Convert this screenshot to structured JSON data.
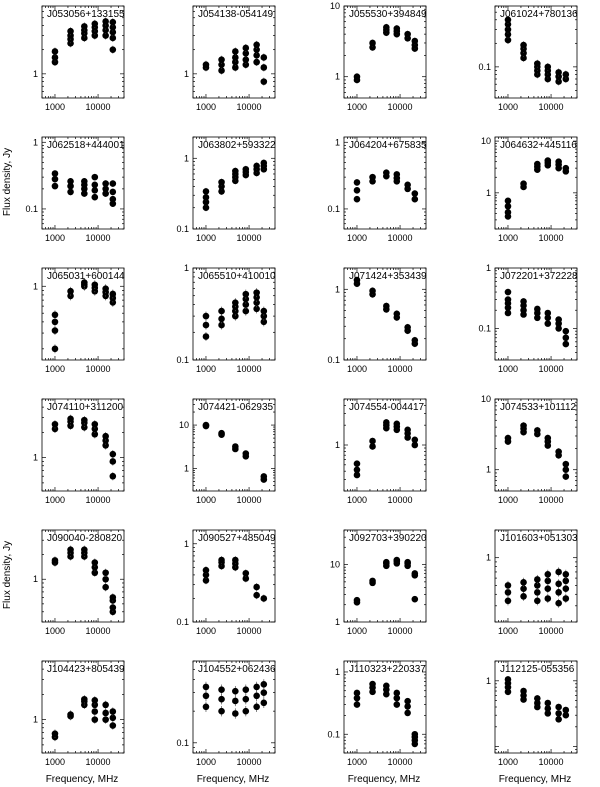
{
  "axis_titles": {
    "ylabel": "Flux density, Jy",
    "xlabel": "Frequency, MHz"
  },
  "chart_data": [
    {
      "type": "scatter",
      "title": "J053056+133155",
      "xticks": [
        1000,
        10000
      ],
      "yticks": [
        1
      ],
      "ylim": [
        0.5,
        7
      ],
      "x": [
        1000,
        1000,
        1000,
        2300,
        2300,
        2300,
        2300,
        4800,
        4800,
        4800,
        4800,
        8400,
        8400,
        8400,
        8400,
        15000,
        15000,
        15000,
        15000,
        22000,
        22000,
        22000,
        22000,
        22000
      ],
      "y": [
        1.4,
        1.6,
        1.9,
        2.4,
        2.7,
        3.0,
        3.4,
        2.8,
        3.2,
        3.5,
        3.9,
        3.0,
        3.4,
        3.8,
        4.2,
        3.0,
        3.5,
        4.0,
        4.5,
        2.0,
        2.8,
        3.3,
        3.8,
        4.4
      ]
    },
    {
      "type": "scatter",
      "title": "J054138-054149",
      "xticks": [
        1000,
        10000
      ],
      "yticks": [
        1
      ],
      "ylim": [
        0.5,
        7
      ],
      "x": [
        1000,
        1000,
        2300,
        2300,
        2300,
        4800,
        4800,
        4800,
        4800,
        8400,
        8400,
        8400,
        8400,
        15000,
        15000,
        15000,
        15000,
        22000,
        22000,
        22000
      ],
      "y": [
        1.2,
        1.3,
        1.1,
        1.3,
        1.5,
        1.2,
        1.4,
        1.6,
        1.9,
        1.3,
        1.5,
        1.8,
        2.1,
        1.4,
        1.7,
        2.0,
        2.3,
        0.8,
        1.2,
        1.6
      ]
    },
    {
      "type": "scatter",
      "title": "J055530+394849",
      "xticks": [
        1000,
        10000
      ],
      "yticks": [
        1,
        10
      ],
      "ylim": [
        0.5,
        10
      ],
      "x": [
        1000,
        1000,
        2300,
        2300,
        4800,
        4800,
        4800,
        8400,
        8400,
        8400,
        15000,
        15000,
        22000,
        22000,
        22000
      ],
      "y": [
        0.9,
        1.0,
        2.6,
        3.0,
        4.2,
        4.6,
        5.0,
        4.0,
        4.4,
        4.8,
        3.5,
        4.0,
        2.5,
        2.8,
        3.2
      ]
    },
    {
      "type": "scatter",
      "title": "J061024+780136",
      "xticks": [
        1000,
        10000
      ],
      "yticks": [
        0.1
      ],
      "ylim": [
        0.04,
        0.6
      ],
      "x": [
        1000,
        1000,
        1000,
        1000,
        1000,
        2300,
        2300,
        2300,
        2300,
        4800,
        4800,
        4800,
        4800,
        8400,
        8400,
        8400,
        8400,
        15000,
        15000,
        15000,
        22000,
        22000
      ],
      "y": [
        0.22,
        0.26,
        0.3,
        0.35,
        0.4,
        0.13,
        0.15,
        0.17,
        0.19,
        0.08,
        0.09,
        0.1,
        0.11,
        0.07,
        0.08,
        0.09,
        0.1,
        0.065,
        0.075,
        0.085,
        0.07,
        0.08
      ]
    },
    {
      "type": "scatter",
      "title": "J062518+444001",
      "xticks": [
        1000,
        10000
      ],
      "yticks": [
        0.1,
        1
      ],
      "ylim": [
        0.05,
        1.2
      ],
      "x": [
        1000,
        1000,
        1000,
        2300,
        2300,
        2300,
        4800,
        4800,
        4800,
        4800,
        8400,
        8400,
        8400,
        8400,
        15000,
        15000,
        15000,
        22000,
        22000,
        22000,
        22000
      ],
      "y": [
        0.22,
        0.28,
        0.34,
        0.18,
        0.22,
        0.26,
        0.17,
        0.2,
        0.23,
        0.26,
        0.15,
        0.19,
        0.23,
        0.3,
        0.17,
        0.2,
        0.24,
        0.12,
        0.14,
        0.18,
        0.24
      ]
    },
    {
      "type": "scatter",
      "title": "J063802+593322",
      "xticks": [
        1000,
        10000
      ],
      "yticks": [
        0.1,
        1
      ],
      "ylim": [
        0.1,
        2
      ],
      "x": [
        1000,
        1000,
        1000,
        1000,
        2300,
        2300,
        2300,
        4800,
        4800,
        4800,
        4800,
        8400,
        8400,
        8400,
        15000,
        15000,
        15000,
        22000,
        22000,
        22000
      ],
      "y": [
        0.2,
        0.24,
        0.28,
        0.34,
        0.34,
        0.4,
        0.46,
        0.48,
        0.54,
        0.6,
        0.66,
        0.58,
        0.64,
        0.7,
        0.62,
        0.7,
        0.78,
        0.7,
        0.78,
        0.86
      ]
    },
    {
      "type": "scatter",
      "title": "J064204+675835",
      "xticks": [
        1000,
        10000
      ],
      "yticks": [
        0.1,
        1
      ],
      "ylim": [
        0.05,
        1.2
      ],
      "x": [
        1000,
        1000,
        1000,
        2300,
        2300,
        4800,
        4800,
        8400,
        8400,
        8400,
        15000,
        15000,
        22000,
        22000
      ],
      "y": [
        0.14,
        0.19,
        0.25,
        0.26,
        0.3,
        0.31,
        0.35,
        0.26,
        0.29,
        0.33,
        0.2,
        0.23,
        0.14,
        0.17
      ]
    },
    {
      "type": "scatter",
      "title": "J064632+445116",
      "xticks": [
        1000,
        10000
      ],
      "yticks": [
        1,
        10
      ],
      "ylim": [
        0.2,
        12
      ],
      "x": [
        1000,
        1000,
        1000,
        1000,
        2300,
        2300,
        4800,
        4800,
        4800,
        8400,
        8400,
        8400,
        15000,
        15000,
        15000,
        22000,
        22000
      ],
      "y": [
        0.35,
        0.42,
        0.55,
        0.7,
        1.3,
        1.5,
        2.8,
        3.2,
        3.6,
        3.4,
        3.8,
        4.2,
        3.0,
        3.5,
        4.0,
        2.6,
        3.0
      ]
    },
    {
      "type": "scatter",
      "title": "J065031+600144",
      "xticks": [
        1000,
        10000
      ],
      "yticks": [
        1
      ],
      "ylim": [
        0.15,
        1.6
      ],
      "x": [
        1000,
        1000,
        1000,
        1000,
        2300,
        2300,
        4800,
        4800,
        4800,
        8400,
        8400,
        8400,
        15000,
        15000,
        15000,
        22000,
        22000,
        22000
      ],
      "y": [
        0.2,
        0.32,
        0.4,
        0.48,
        0.78,
        0.88,
        1.0,
        1.05,
        1.1,
        0.88,
        0.96,
        1.04,
        0.78,
        0.86,
        0.94,
        0.66,
        0.74,
        0.82
      ]
    },
    {
      "type": "scatter",
      "title": "J065510+410010",
      "xticks": [
        1000,
        10000
      ],
      "yticks": [
        0.1,
        1
      ],
      "ylim": [
        0.1,
        1
      ],
      "x": [
        1000,
        1000,
        1000,
        2300,
        2300,
        2300,
        4800,
        4800,
        4800,
        4800,
        8400,
        8400,
        8400,
        8400,
        15000,
        15000,
        15000,
        15000,
        22000,
        22000,
        22000
      ],
      "y": [
        0.18,
        0.24,
        0.3,
        0.24,
        0.28,
        0.34,
        0.3,
        0.34,
        0.38,
        0.42,
        0.34,
        0.4,
        0.46,
        0.52,
        0.36,
        0.42,
        0.48,
        0.54,
        0.26,
        0.3,
        0.34
      ]
    },
    {
      "type": "scatter",
      "title": "J071424+353439",
      "xticks": [
        1000,
        10000
      ],
      "yticks": [
        0.1,
        1
      ],
      "ylim": [
        0.1,
        2
      ],
      "x": [
        1000,
        1000,
        2300,
        2300,
        4800,
        4800,
        8400,
        8400,
        15000,
        15000,
        22000,
        22000
      ],
      "y": [
        1.2,
        1.35,
        0.85,
        0.95,
        0.52,
        0.58,
        0.4,
        0.45,
        0.26,
        0.29,
        0.17,
        0.19
      ]
    },
    {
      "type": "scatter",
      "title": "J072201+372228",
      "xticks": [
        1000,
        10000
      ],
      "yticks": [
        0.1,
        1
      ],
      "ylim": [
        0.03,
        1
      ],
      "x": [
        1000,
        1000,
        1000,
        1000,
        1000,
        2300,
        2300,
        2300,
        2300,
        4800,
        4800,
        4800,
        8400,
        8400,
        8400,
        15000,
        15000,
        15000,
        22000,
        22000,
        22000
      ],
      "y": [
        0.18,
        0.22,
        0.26,
        0.3,
        0.4,
        0.17,
        0.2,
        0.24,
        0.28,
        0.15,
        0.18,
        0.21,
        0.12,
        0.15,
        0.18,
        0.1,
        0.12,
        0.14,
        0.055,
        0.07,
        0.09
      ]
    },
    {
      "type": "scatter",
      "title": "J074110+311200",
      "xticks": [
        1000,
        10000
      ],
      "yticks": [
        1
      ],
      "ylim": [
        0.4,
        5
      ],
      "x": [
        1000,
        1000,
        2300,
        2300,
        2300,
        4800,
        4800,
        4800,
        8400,
        8400,
        8400,
        15000,
        15000,
        15000,
        22000,
        22000,
        22000
      ],
      "y": [
        2.2,
        2.5,
        2.4,
        2.7,
        2.9,
        2.3,
        2.6,
        2.8,
        1.9,
        2.2,
        2.5,
        1.4,
        1.6,
        1.8,
        0.6,
        0.9,
        1.1
      ]
    },
    {
      "type": "scatter",
      "title": "J074421-062935",
      "xticks": [
        1000,
        10000
      ],
      "yticks": [
        1,
        10
      ],
      "ylim": [
        0.3,
        40
      ],
      "x": [
        1000,
        1000,
        2300,
        2300,
        4800,
        4800,
        8400,
        8400,
        22000,
        22000
      ],
      "y": [
        9.5,
        10.0,
        6.0,
        6.5,
        2.8,
        3.2,
        1.9,
        2.2,
        0.55,
        0.65
      ]
    },
    {
      "type": "scatter",
      "title": "J074554-004417",
      "xticks": [
        1000,
        10000
      ],
      "yticks": [
        1
      ],
      "ylim": [
        0.2,
        5
      ],
      "x": [
        1000,
        1000,
        1000,
        2300,
        2300,
        4800,
        4800,
        4800,
        8400,
        8400,
        8400,
        15000,
        15000,
        15000,
        22000,
        22000
      ],
      "y": [
        0.35,
        0.42,
        0.52,
        0.95,
        1.15,
        1.8,
        2.0,
        2.2,
        1.7,
        1.9,
        2.1,
        1.3,
        1.5,
        1.7,
        1.0,
        1.2
      ]
    },
    {
      "type": "scatter",
      "title": "J074533+101112",
      "xticks": [
        1000,
        10000
      ],
      "yticks": [
        1,
        10
      ],
      "ylim": [
        0.5,
        10
      ],
      "x": [
        1000,
        1000,
        2300,
        2300,
        2300,
        4800,
        4800,
        8400,
        8400,
        8400,
        15000,
        15000,
        22000,
        22000,
        22000
      ],
      "y": [
        2.5,
        2.8,
        3.4,
        3.8,
        4.2,
        3.2,
        3.6,
        2.2,
        2.5,
        2.8,
        1.6,
        1.8,
        0.8,
        1.0,
        1.2
      ]
    },
    {
      "type": "scatter",
      "title": "J090040-280820",
      "xticks": [
        1000,
        10000
      ],
      "yticks": [
        1
      ],
      "ylim": [
        0.3,
        4
      ],
      "x": [
        1000,
        1000,
        2300,
        2300,
        2300,
        4800,
        4800,
        4800,
        8400,
        8400,
        8400,
        15000,
        15000,
        15000,
        22000,
        22000,
        22000,
        22000
      ],
      "y": [
        1.6,
        1.7,
        1.9,
        2.1,
        2.3,
        1.9,
        2.1,
        2.3,
        1.2,
        1.4,
        1.6,
        0.8,
        1.0,
        1.2,
        0.4,
        0.45,
        0.55,
        0.6
      ]
    },
    {
      "type": "scatter",
      "title": "J090527+485049",
      "xticks": [
        1000,
        10000
      ],
      "yticks": [
        0.1,
        1
      ],
      "ylim": [
        0.1,
        1.5
      ],
      "x": [
        1000,
        1000,
        1000,
        2300,
        2300,
        2300,
        4800,
        4800,
        4800,
        8400,
        8400,
        15000,
        15000,
        22000
      ],
      "y": [
        0.34,
        0.4,
        0.46,
        0.52,
        0.58,
        0.62,
        0.5,
        0.56,
        0.62,
        0.36,
        0.42,
        0.22,
        0.28,
        0.2
      ]
    },
    {
      "type": "scatter",
      "title": "J092703+390220",
      "xticks": [
        1000,
        10000
      ],
      "yticks": [
        1,
        10
      ],
      "ylim": [
        1,
        40
      ],
      "x": [
        1000,
        1000,
        2300,
        2300,
        4800,
        4800,
        4800,
        8400,
        8400,
        8400,
        15000,
        15000,
        15000,
        22000,
        22000,
        22000
      ],
      "y": [
        2.2,
        2.4,
        4.8,
        5.2,
        9.5,
        10.5,
        11.0,
        10.5,
        11.5,
        12.0,
        9.5,
        10.5,
        11.0,
        2.5,
        6.5,
        7.0
      ]
    },
    {
      "type": "scatter",
      "title": "J101603+051303",
      "xticks": [
        1000,
        10000
      ],
      "yticks": [
        1
      ],
      "ylim": [
        0.2,
        2
      ],
      "x": [
        1000,
        1000,
        1000,
        2300,
        2300,
        2300,
        4800,
        4800,
        4800,
        4800,
        8400,
        8400,
        8400,
        8400,
        15000,
        15000,
        15000,
        15000,
        22000,
        22000,
        22000,
        22000
      ],
      "y": [
        0.34,
        0.42,
        0.5,
        0.38,
        0.46,
        0.54,
        0.34,
        0.42,
        0.5,
        0.58,
        0.36,
        0.46,
        0.56,
        0.66,
        0.32,
        0.42,
        0.52,
        0.7,
        0.36,
        0.46,
        0.56,
        0.66
      ]
    },
    {
      "type": "scatter",
      "title": "J104423+805439",
      "xticks": [
        1000,
        10000
      ],
      "yticks": [
        1
      ],
      "ylim": [
        0.4,
        5
      ],
      "x": [
        1000,
        1000,
        2300,
        2300,
        4800,
        4800,
        4800,
        8400,
        8400,
        8400,
        8400,
        15000,
        15000,
        15000,
        22000,
        22000,
        22000
      ],
      "y": [
        0.62,
        0.68,
        1.1,
        1.15,
        1.5,
        1.65,
        1.75,
        1.0,
        1.25,
        1.5,
        1.7,
        1.0,
        1.2,
        1.5,
        0.85,
        1.05,
        1.25
      ]
    },
    {
      "type": "scatter",
      "title": "J104552+062436",
      "xticks": [
        1000,
        10000
      ],
      "yticks": [
        0.1
      ],
      "ylim": [
        0.08,
        0.6
      ],
      "x": [
        1000,
        1000,
        1000,
        2300,
        2300,
        2300,
        4800,
        4800,
        4800,
        8400,
        8400,
        8400,
        15000,
        15000,
        15000,
        22000,
        22000,
        22000
      ],
      "y": [
        0.22,
        0.28,
        0.34,
        0.2,
        0.26,
        0.32,
        0.19,
        0.25,
        0.31,
        0.2,
        0.26,
        0.32,
        0.22,
        0.28,
        0.34,
        0.24,
        0.3,
        0.36
      ]
    },
    {
      "type": "scatter",
      "title": "J110323+220337",
      "xticks": [
        1000,
        10000
      ],
      "yticks": [
        0.1,
        1
      ],
      "ylim": [
        0.05,
        1.5
      ],
      "x": [
        1000,
        1000,
        1000,
        2300,
        2300,
        2300,
        4800,
        4800,
        4800,
        8400,
        8400,
        8400,
        15000,
        15000,
        15000,
        22000,
        22000,
        22000,
        22000
      ],
      "y": [
        0.3,
        0.38,
        0.46,
        0.48,
        0.56,
        0.64,
        0.44,
        0.52,
        0.6,
        0.3,
        0.38,
        0.46,
        0.22,
        0.28,
        0.34,
        0.07,
        0.08,
        0.09,
        0.1
      ]
    },
    {
      "type": "scatter",
      "title": "J112125-055356",
      "xticks": [
        1000,
        10000
      ],
      "yticks": [
        1
      ],
      "ylim": [
        0.08,
        2
      ],
      "x": [
        1000,
        1000,
        1000,
        1000,
        2300,
        2300,
        2300,
        4800,
        4800,
        4800,
        8400,
        8400,
        8400,
        15000,
        15000,
        15000,
        22000,
        22000
      ],
      "y": [
        0.68,
        0.8,
        0.92,
        1.05,
        0.52,
        0.6,
        0.7,
        0.4,
        0.46,
        0.54,
        0.32,
        0.38,
        0.46,
        0.26,
        0.32,
        0.4,
        0.3,
        0.36
      ]
    }
  ]
}
